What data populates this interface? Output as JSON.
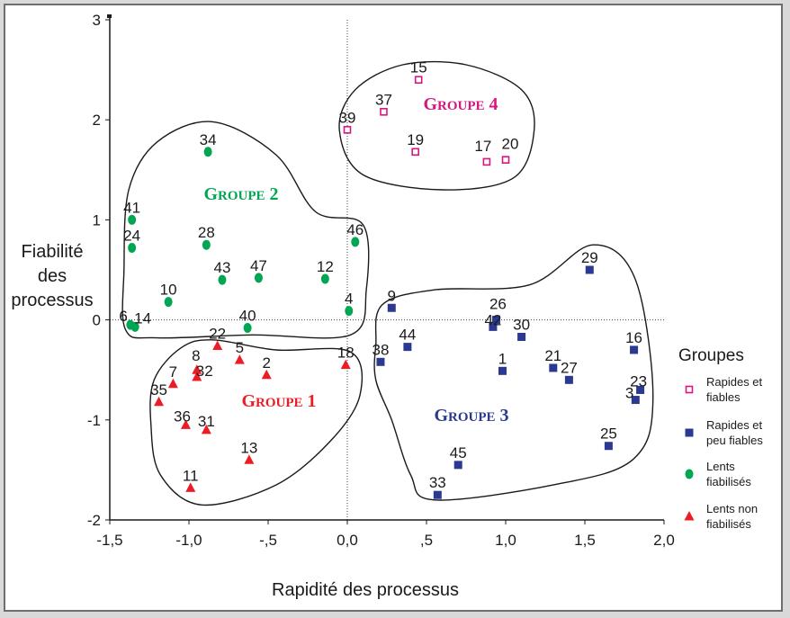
{
  "chart_data": {
    "type": "scatter",
    "xlabel": "Rapidité des processus",
    "ylabel_lines": [
      "Fiabilité",
      "des",
      "processus"
    ],
    "xlim": [
      -1.5,
      2.0
    ],
    "ylim": [
      -2,
      3
    ],
    "x_ticks": [
      {
        "value": -1.5,
        "label": "-1,5"
      },
      {
        "value": -1.0,
        "label": "-1,0"
      },
      {
        "value": -0.5,
        "label": "-,5"
      },
      {
        "value": 0.0,
        "label": "0,0"
      },
      {
        "value": 0.5,
        "label": ",5"
      },
      {
        "value": 1.0,
        "label": "1,0"
      },
      {
        "value": 1.5,
        "label": "1,5"
      },
      {
        "value": 2.0,
        "label": "2,0"
      }
    ],
    "y_ticks": [
      {
        "value": -2,
        "label": "-2"
      },
      {
        "value": -1,
        "label": "-1"
      },
      {
        "value": 0,
        "label": "0"
      },
      {
        "value": 1,
        "label": "1"
      },
      {
        "value": 2,
        "label": "2"
      },
      {
        "value": 3,
        "label": "3"
      }
    ],
    "reference_lines": {
      "x": 0,
      "y": 0
    },
    "legend": {
      "title": "Groupes",
      "placement": "right",
      "entries": [
        {
          "series": 0,
          "lines": [
            "Rapides et",
            "fiables"
          ]
        },
        {
          "series": 1,
          "lines": [
            "Rapides et",
            "peu fiables"
          ]
        },
        {
          "series": 2,
          "lines": [
            "Lents",
            "fiabilisés"
          ]
        },
        {
          "series": 3,
          "lines": [
            "Lents non",
            "fiabilisés"
          ]
        }
      ]
    },
    "series": [
      {
        "name": "Rapides et fiables",
        "marker": "open-square",
        "color": "#d6177f",
        "group_label": "GROUPE 4",
        "points": [
          {
            "id": "15",
            "x": 0.45,
            "y": 2.4
          },
          {
            "id": "37",
            "x": 0.23,
            "y": 2.08
          },
          {
            "id": "39",
            "x": 0.0,
            "y": 1.9
          },
          {
            "id": "19",
            "x": 0.43,
            "y": 1.68
          },
          {
            "id": "17",
            "x": 0.88,
            "y": 1.58
          },
          {
            "id": "20",
            "x": 1.0,
            "y": 1.6
          }
        ]
      },
      {
        "name": "Rapides et peu fiables",
        "marker": "square",
        "color": "#2b3990",
        "group_label": "GROUPE 3",
        "points": [
          {
            "id": "29",
            "x": 1.53,
            "y": 0.5
          },
          {
            "id": "9",
            "x": 0.28,
            "y": 0.12
          },
          {
            "id": "26",
            "x": 0.94,
            "y": 0.0
          },
          {
            "id": "42",
            "x": 0.92,
            "y": -0.07
          },
          {
            "id": "30",
            "x": 1.1,
            "y": -0.17
          },
          {
            "id": "44",
            "x": 0.38,
            "y": -0.27
          },
          {
            "id": "38",
            "x": 0.21,
            "y": -0.42
          },
          {
            "id": "16",
            "x": 1.81,
            "y": -0.3
          },
          {
            "id": "1",
            "x": 0.98,
            "y": -0.51
          },
          {
            "id": "21",
            "x": 1.3,
            "y": -0.48
          },
          {
            "id": "27",
            "x": 1.4,
            "y": -0.6
          },
          {
            "id": "23",
            "x": 1.85,
            "y": -0.7
          },
          {
            "id": "3",
            "x": 1.82,
            "y": -0.8
          },
          {
            "id": "25",
            "x": 1.65,
            "y": -1.26
          },
          {
            "id": "45",
            "x": 0.7,
            "y": -1.45
          },
          {
            "id": "33",
            "x": 0.57,
            "y": -1.75
          }
        ]
      },
      {
        "name": "Lents fiabilisés",
        "marker": "circle",
        "color": "#00a651",
        "group_label": "GROUPE 2",
        "points": [
          {
            "id": "34",
            "x": -0.88,
            "y": 1.68
          },
          {
            "id": "41",
            "x": -1.36,
            "y": 1.0
          },
          {
            "id": "24",
            "x": -1.36,
            "y": 0.72
          },
          {
            "id": "28",
            "x": -0.89,
            "y": 0.75
          },
          {
            "id": "46",
            "x": 0.05,
            "y": 0.78
          },
          {
            "id": "43",
            "x": -0.79,
            "y": 0.4
          },
          {
            "id": "47",
            "x": -0.56,
            "y": 0.42
          },
          {
            "id": "12",
            "x": -0.14,
            "y": 0.41
          },
          {
            "id": "10",
            "x": -1.13,
            "y": 0.18
          },
          {
            "id": "4",
            "x": 0.01,
            "y": 0.09
          },
          {
            "id": "40",
            "x": -0.63,
            "y": -0.08
          },
          {
            "id": "6",
            "x": -1.37,
            "y": -0.05
          },
          {
            "id": "14",
            "x": -1.34,
            "y": -0.07
          }
        ]
      },
      {
        "name": "Lents non fiabilisés",
        "marker": "triangle",
        "color": "#ed1c24",
        "group_label": "GROUPE 1",
        "points": [
          {
            "id": "22",
            "x": -0.82,
            "y": -0.26
          },
          {
            "id": "5",
            "x": -0.68,
            "y": -0.4
          },
          {
            "id": "18",
            "x": -0.01,
            "y": -0.45
          },
          {
            "id": "2",
            "x": -0.51,
            "y": -0.55
          },
          {
            "id": "8",
            "x": -0.95,
            "y": -0.5
          },
          {
            "id": "32",
            "x": -0.95,
            "y": -0.57
          },
          {
            "id": "7",
            "x": -1.1,
            "y": -0.64
          },
          {
            "id": "35",
            "x": -1.19,
            "y": -0.82
          },
          {
            "id": "36",
            "x": -1.02,
            "y": -1.05
          },
          {
            "id": "31",
            "x": -0.89,
            "y": -1.1
          },
          {
            "id": "13",
            "x": -0.62,
            "y": -1.4
          },
          {
            "id": "11",
            "x": -0.99,
            "y": -1.68
          }
        ]
      }
    ]
  }
}
